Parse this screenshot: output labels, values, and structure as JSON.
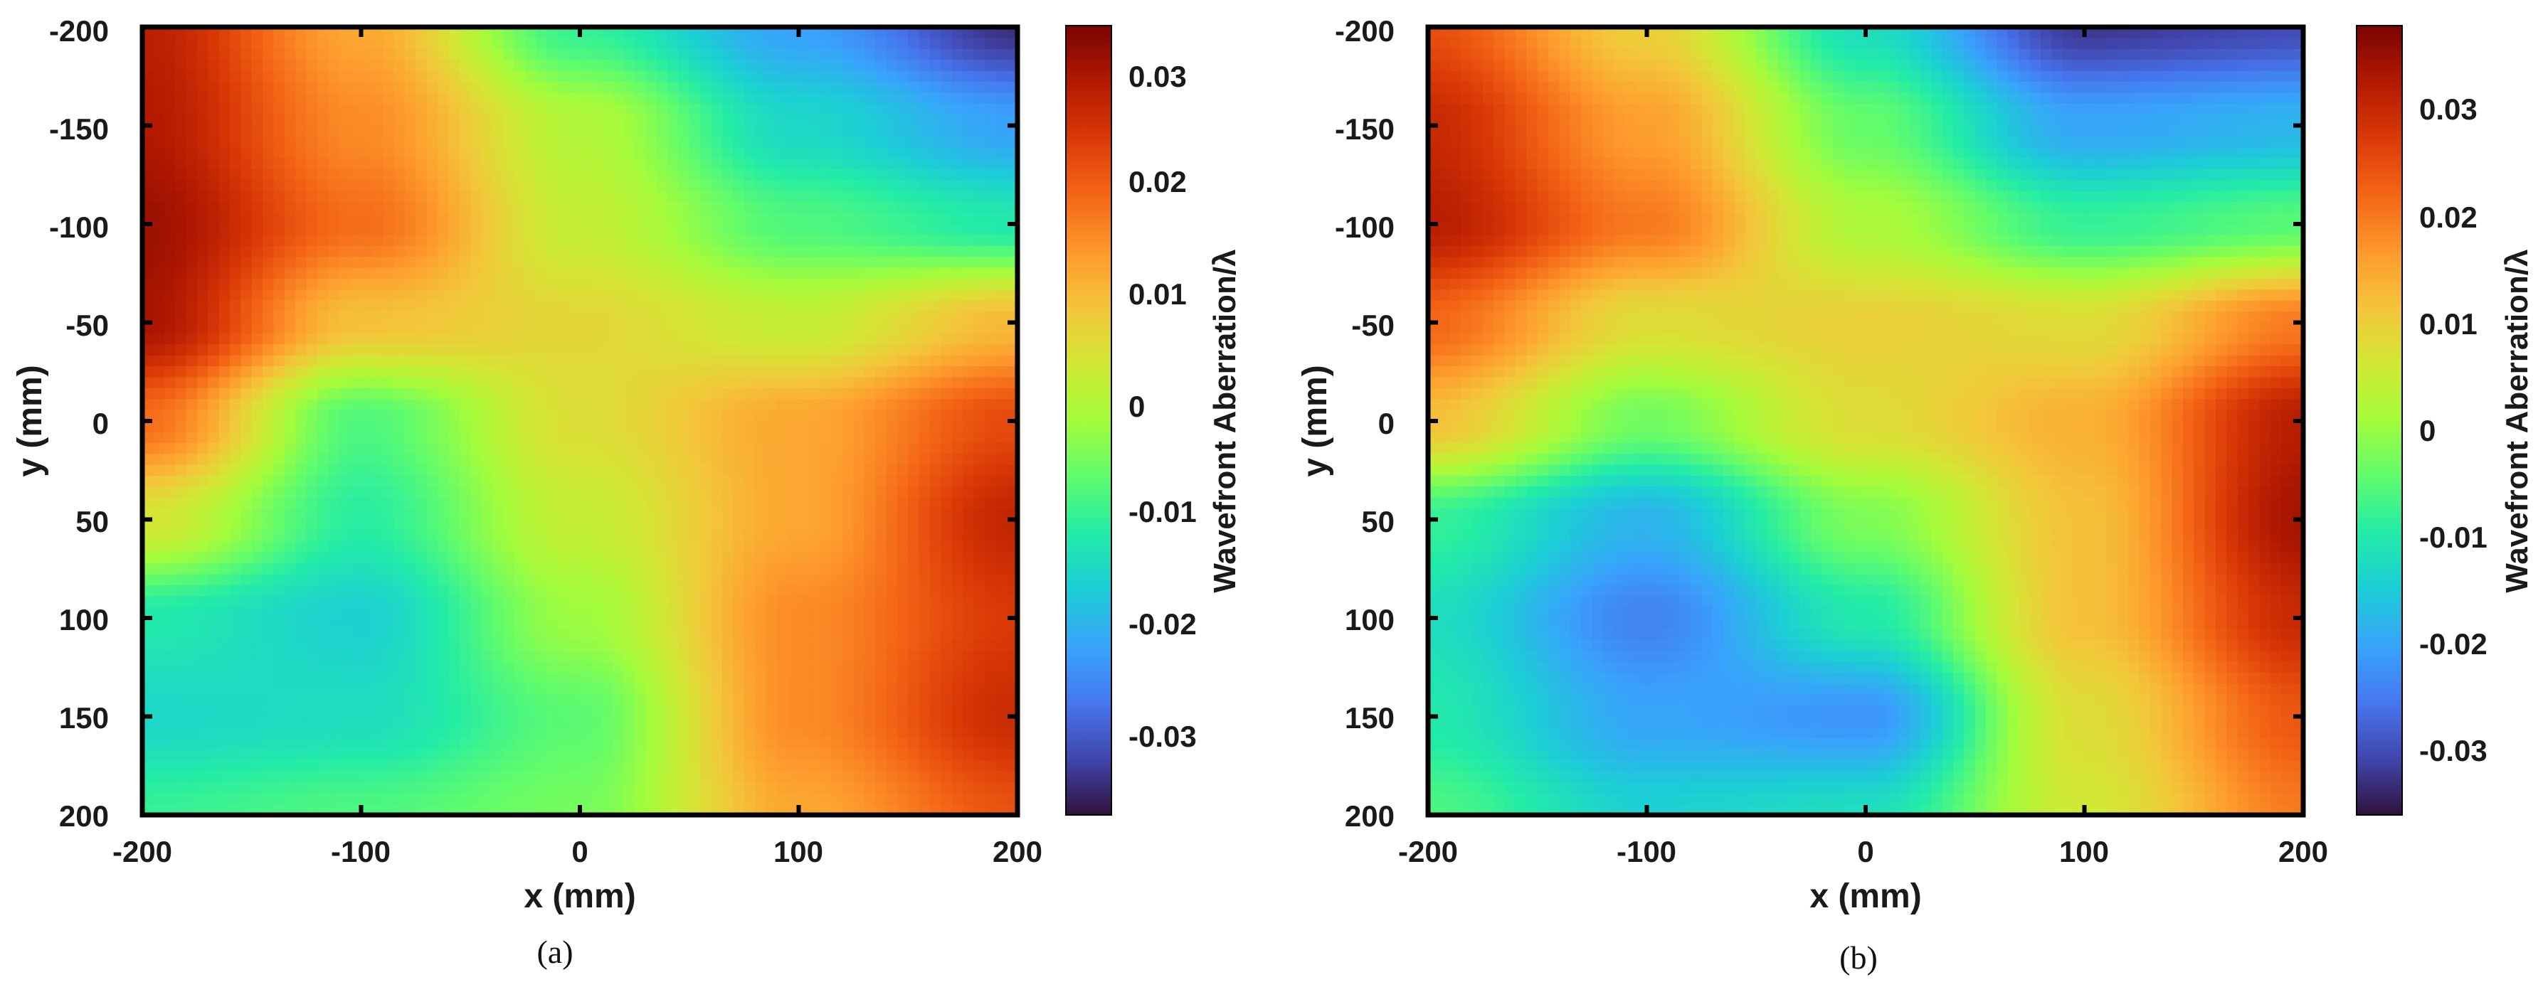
{
  "chart_data": [
    {
      "type": "heatmap",
      "panel_label": "(a)",
      "xlabel": "x (mm)",
      "ylabel": "y (mm)",
      "xlim": [
        -200,
        200
      ],
      "ylim": [
        -200,
        200
      ],
      "y_reversed": true,
      "x_ticks": [
        "-200",
        "-100",
        "0",
        "100",
        "200"
      ],
      "y_ticks": [
        "-200",
        "-150",
        "-100",
        "-50",
        "0",
        "50",
        "100",
        "150",
        "200"
      ],
      "colorbar": {
        "label": "Wavefront Aberration/λ",
        "range": [
          -0.037,
          0.034
        ],
        "ticks": [
          "-0.03",
          "-0.02",
          "-0.01",
          "0",
          "0.01",
          "0.02",
          "0.03"
        ],
        "colormap": "turbo"
      },
      "grid": {
        "x": [
          -200,
          -100,
          0,
          100,
          200
        ],
        "y": [
          -200,
          -150,
          -100,
          -50,
          0,
          50,
          100,
          150,
          200
        ],
        "z": [
          [
            0.028,
            0.012,
            -0.01,
            -0.022,
            -0.034
          ],
          [
            0.029,
            0.015,
            0.0,
            -0.015,
            -0.022
          ],
          [
            0.031,
            0.018,
            0.002,
            -0.008,
            -0.012
          ],
          [
            0.03,
            0.009,
            0.006,
            0.002,
            0.01
          ],
          [
            0.018,
            -0.008,
            0.005,
            0.012,
            0.022
          ],
          [
            0.004,
            -0.011,
            0.002,
            0.012,
            0.027
          ],
          [
            -0.012,
            -0.016,
            -0.002,
            0.015,
            0.024
          ],
          [
            -0.015,
            -0.014,
            -0.007,
            0.015,
            0.026
          ],
          [
            -0.01,
            -0.008,
            -0.005,
            0.012,
            0.021
          ]
        ]
      }
    },
    {
      "type": "heatmap",
      "panel_label": "(b)",
      "xlabel": "x (mm)",
      "ylabel": "y (mm)",
      "xlim": [
        -200,
        200
      ],
      "ylim": [
        -200,
        200
      ],
      "y_reversed": true,
      "x_ticks": [
        "-200",
        "-100",
        "0",
        "100",
        "200"
      ],
      "y_ticks": [
        "-200",
        "-150",
        "-100",
        "-50",
        "0",
        "50",
        "100",
        "150",
        "200"
      ],
      "colorbar": {
        "label": "Wavefront Aberration/λ",
        "range": [
          -0.036,
          0.038
        ],
        "ticks": [
          "-0.03",
          "-0.02",
          "-0.01",
          "0",
          "0.01",
          "0.02",
          "0.03"
        ],
        "colormap": "turbo"
      },
      "grid": {
        "x": [
          -200,
          -100,
          0,
          100,
          200
        ],
        "y": [
          -200,
          -150,
          -100,
          -50,
          0,
          50,
          100,
          150,
          200
        ],
        "z": [
          [
            0.025,
            0.01,
            -0.012,
            -0.032,
            -0.03
          ],
          [
            0.03,
            0.016,
            -0.004,
            -0.02,
            -0.018
          ],
          [
            0.032,
            0.02,
            0.002,
            -0.008,
            -0.005
          ],
          [
            0.022,
            0.008,
            0.01,
            0.008,
            0.02
          ],
          [
            0.012,
            -0.003,
            0.008,
            0.014,
            0.032
          ],
          [
            -0.008,
            -0.018,
            -0.002,
            0.012,
            0.034
          ],
          [
            -0.012,
            -0.024,
            -0.01,
            0.012,
            0.03
          ],
          [
            -0.01,
            -0.02,
            -0.022,
            0.008,
            0.024
          ],
          [
            -0.006,
            -0.014,
            -0.012,
            0.006,
            0.02
          ]
        ]
      }
    }
  ]
}
